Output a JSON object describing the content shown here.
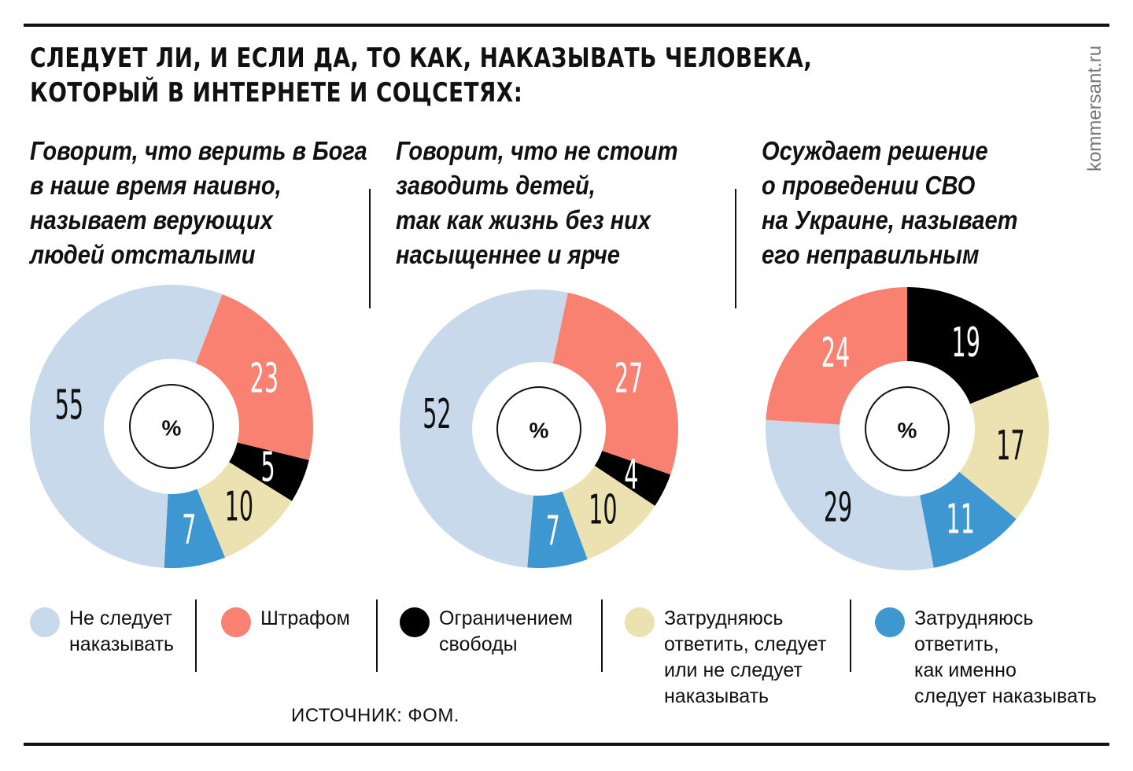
{
  "title": {
    "line1": "СЛЕДУЕТ ЛИ, И ЕСЛИ ДА, ТО КАК, НАКАЗЫВАТЬ ЧЕЛОВЕКА,",
    "line2": "КОТОРЫЙ В ИНТЕРНЕТЕ И СОЦСЕТЯХ:"
  },
  "credit": "kommersant.ru",
  "source": "ИСТОЧНИК: ФОМ.",
  "colors": {
    "not_punish": "#c7d9ea",
    "fine": "#f88171",
    "restriction": "#000000",
    "hard_whether": "#ebe1b1",
    "hard_how": "#3f97d1"
  },
  "legend": [
    {
      "key": "not_punish",
      "lines": [
        "Не следует",
        "наказывать"
      ]
    },
    {
      "key": "fine",
      "lines": [
        "Штрафом"
      ]
    },
    {
      "key": "restriction",
      "lines": [
        "Ограничением",
        "свободы"
      ]
    },
    {
      "key": "hard_whether",
      "lines": [
        "Затрудняюсь",
        "ответить, следует",
        "или не следует",
        "наказывать"
      ]
    },
    {
      "key": "hard_how",
      "lines": [
        "Затрудняюсь",
        "ответить,",
        "как именно",
        "следует наказывать"
      ]
    }
  ],
  "chart_data": [
    {
      "type": "pie",
      "question": [
        "Говорит, что верить в Бога",
        "в наше время наивно,",
        "называет верующих",
        "людей отсталыми"
      ],
      "center_label": "%",
      "slices": [
        {
          "key": "fine",
          "value": 23
        },
        {
          "key": "restriction",
          "value": 5
        },
        {
          "key": "hard_whether",
          "value": 10
        },
        {
          "key": "hard_how",
          "value": 7
        },
        {
          "key": "not_punish",
          "value": 55
        }
      ]
    },
    {
      "type": "pie",
      "question": [
        "Говорит, что не стоит",
        "заводить детей,",
        "так как жизнь без них",
        "насыщеннее и ярче"
      ],
      "center_label": "%",
      "slices": [
        {
          "key": "fine",
          "value": 27
        },
        {
          "key": "restriction",
          "value": 4
        },
        {
          "key": "hard_whether",
          "value": 10
        },
        {
          "key": "hard_how",
          "value": 7
        },
        {
          "key": "not_punish",
          "value": 52
        }
      ]
    },
    {
      "type": "pie",
      "question": [
        "Осуждает решение",
        "о проведении СВО",
        "на Украине, называет",
        "его неправильным"
      ],
      "center_label": "%",
      "slices": [
        {
          "key": "restriction",
          "value": 19
        },
        {
          "key": "hard_whether",
          "value": 17
        },
        {
          "key": "hard_how",
          "value": 11
        },
        {
          "key": "not_punish",
          "value": 29
        },
        {
          "key": "fine",
          "value": 24
        }
      ]
    }
  ]
}
